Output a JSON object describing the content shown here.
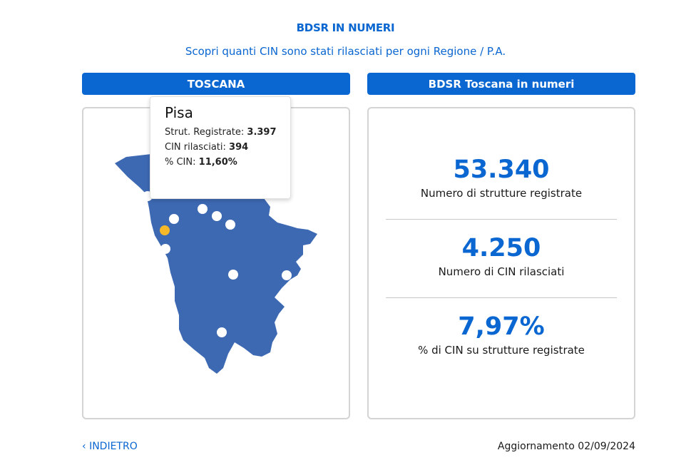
{
  "header": {
    "title": "BDSR IN NUMERI",
    "subtitle": "Scopri quanti CIN sono stati rilasciati per ogni Regione / P.A."
  },
  "left_panel": {
    "region_label": "TOSCANA",
    "tooltip": {
      "city": "Pisa",
      "rows": [
        {
          "label": "Strut. Registrate:",
          "value": "3.397"
        },
        {
          "label": "CIN rilasciati:",
          "value": "394"
        },
        {
          "label": "% CIN:",
          "value": "11,60%"
        }
      ]
    }
  },
  "right_panel": {
    "title": "BDSR Toscana in numeri",
    "stats": [
      {
        "value": "53.340",
        "label": "Numero di strutture registrate"
      },
      {
        "value": "4.250",
        "label": "Numero di CIN rilasciati"
      },
      {
        "value": "7,97%",
        "label": "% di CIN su strutture registrate"
      }
    ]
  },
  "footer": {
    "back_icon": "chevron-left-icon",
    "back_label": "INDIETRO",
    "updated": "Aggiornamento 02/09/2024"
  },
  "colors": {
    "accent": "#0a66d0",
    "map_fill": "#3d69b3",
    "highlight_marker": "#f5b829"
  }
}
